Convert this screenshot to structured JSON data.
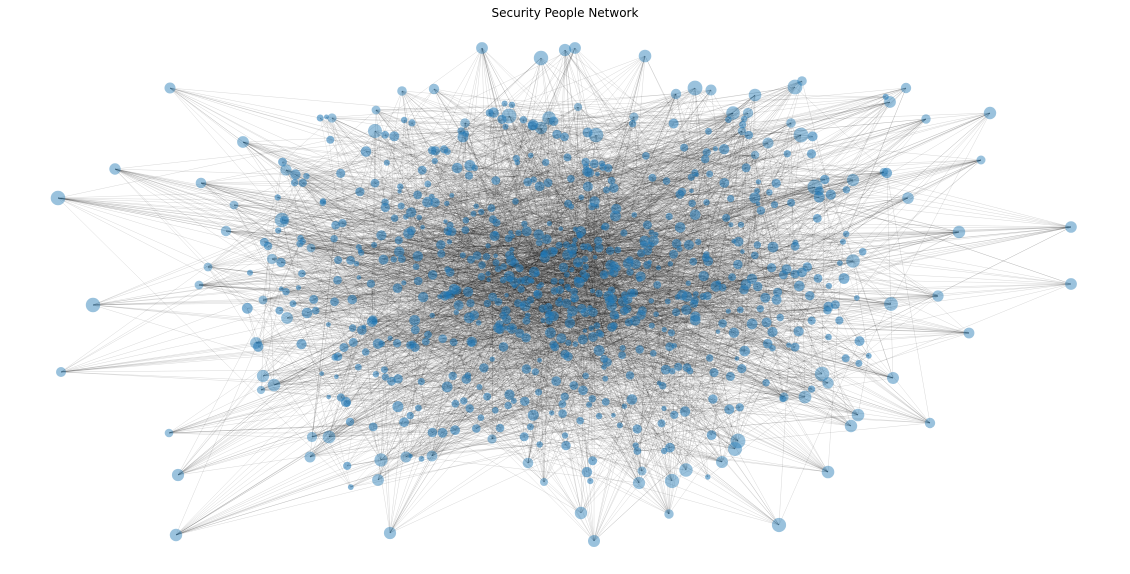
{
  "title": "Security People Network",
  "colors": {
    "node": "#1f77b4",
    "edge": "#000000",
    "background": "#ffffff"
  },
  "chart_data": {
    "type": "network",
    "title": "Security People Network",
    "node_color": "#1f77b4",
    "edge_color": "#000000",
    "grid": false,
    "legend": "none"
  }
}
